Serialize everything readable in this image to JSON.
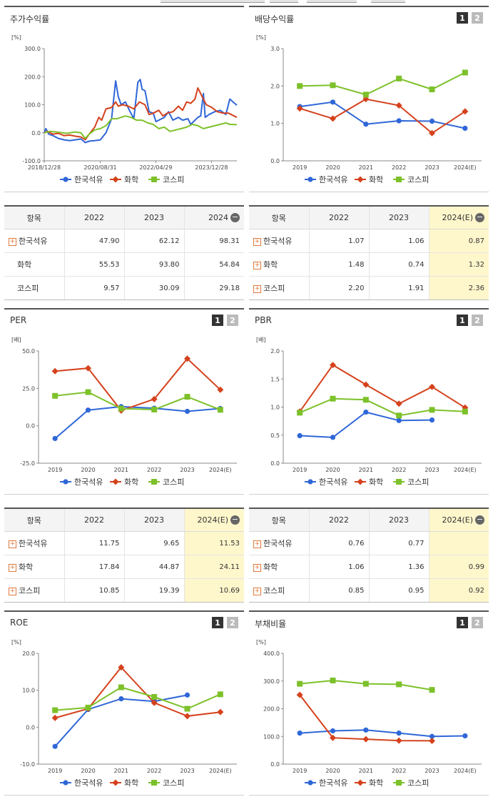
{
  "colors": {
    "series1": "#2f67d8",
    "series2": "#d5421d",
    "series3": "#7dc12a",
    "axis": "#888888",
    "highlight": "#fff7cc"
  },
  "button_labels": [
    "1",
    "2"
  ],
  "legend": [
    "한국석유",
    "화학",
    "코스피"
  ],
  "panels": [
    {
      "id": "p1",
      "title": "주가수익률",
      "unit": "[%]"
    },
    {
      "id": "p2",
      "title": "배당수익률",
      "unit": "[%]"
    },
    {
      "id": "p3",
      "title": "PER",
      "unit": "[배]"
    },
    {
      "id": "p4",
      "title": "PBR",
      "unit": "[배]"
    },
    {
      "id": "p5",
      "title": "ROE",
      "unit": "[%]"
    },
    {
      "id": "p6",
      "title": "부채비율",
      "unit": "[%]"
    }
  ],
  "tables": [
    {
      "header": [
        "항목",
        "2022",
        "2023",
        "2024"
      ],
      "rows": [
        {
          "name": "한국석유",
          "values": [
            "47.90",
            "62.12",
            "98.31"
          ]
        },
        {
          "name": "화학",
          "values": [
            "55.53",
            "93.80",
            "54.84"
          ]
        },
        {
          "name": "코스피",
          "values": [
            "9.57",
            "30.09",
            "29.18"
          ]
        }
      ]
    },
    {
      "header": [
        "항목",
        "2022",
        "2023",
        "2024(E)"
      ],
      "rows": [
        {
          "name": "한국석유",
          "values": [
            "1.07",
            "1.06",
            "0.87"
          ]
        },
        {
          "name": "화학",
          "values": [
            "1.48",
            "0.74",
            "1.32"
          ]
        },
        {
          "name": "코스피",
          "values": [
            "2.20",
            "1.91",
            "2.36"
          ]
        }
      ]
    },
    {
      "header": [
        "항목",
        "2022",
        "2023",
        "2024(E)"
      ],
      "rows": [
        {
          "name": "한국석유",
          "values": [
            "11.75",
            "9.65",
            "11.53"
          ]
        },
        {
          "name": "화학",
          "values": [
            "17.84",
            "44.87",
            "24.11"
          ]
        },
        {
          "name": "코스피",
          "values": [
            "10.85",
            "19.39",
            "10.69"
          ]
        }
      ]
    },
    {
      "header": [
        "항목",
        "2022",
        "2023",
        "2024(E)"
      ],
      "rows": [
        {
          "name": "한국석유",
          "values": [
            "0.76",
            "0.77",
            ""
          ]
        },
        {
          "name": "화학",
          "values": [
            "1.06",
            "1.36",
            "0.99"
          ]
        },
        {
          "name": "코스피",
          "values": [
            "0.85",
            "0.95",
            "0.92"
          ]
        }
      ]
    }
  ],
  "chart_data": [
    {
      "type": "line",
      "title": "주가수익률",
      "x_tick_labels": [
        "2018/12/28",
        "2020/08/31",
        "2022/04/29",
        "2023/12/28"
      ],
      "y_tick_labels": [
        "-100.0",
        "0.0",
        "100.0",
        "200.0",
        "300.0"
      ],
      "ylim": [
        -100,
        300
      ],
      "x_range": [
        "2018-12-28",
        "2024-09-30"
      ],
      "series": [
        {
          "name": "한국석유",
          "points": [
            [
              "2018-12-28",
              0
            ],
            [
              "2019-01-15",
              15
            ],
            [
              "2019-02-15",
              -5
            ],
            [
              "2019-04-01",
              -10
            ],
            [
              "2019-06-01",
              -20
            ],
            [
              "2019-08-01",
              -25
            ],
            [
              "2019-10-01",
              -28
            ],
            [
              "2019-12-01",
              -25
            ],
            [
              "2020-02-01",
              -22
            ],
            [
              "2020-03-20",
              -35
            ],
            [
              "2020-05-01",
              -30
            ],
            [
              "2020-07-01",
              -28
            ],
            [
              "2020-09-01",
              -25
            ],
            [
              "2020-11-01",
              0
            ],
            [
              "2021-01-01",
              50
            ],
            [
              "2021-02-15",
              185
            ],
            [
              "2021-03-15",
              130
            ],
            [
              "2021-04-15",
              100
            ],
            [
              "2021-06-01",
              110
            ],
            [
              "2021-07-15",
              80
            ],
            [
              "2021-09-01",
              50
            ],
            [
              "2021-10-15",
              180
            ],
            [
              "2021-11-10",
              190
            ],
            [
              "2021-12-01",
              155
            ],
            [
              "2022-01-01",
              150
            ],
            [
              "2022-02-15",
              75
            ],
            [
              "2022-04-01",
              70
            ],
            [
              "2022-05-01",
              40
            ],
            [
              "2022-06-01",
              45
            ],
            [
              "2022-08-01",
              55
            ],
            [
              "2022-09-15",
              75
            ],
            [
              "2022-11-01",
              45
            ],
            [
              "2023-01-01",
              55
            ],
            [
              "2023-02-15",
              45
            ],
            [
              "2023-04-15",
              50
            ],
            [
              "2023-05-15",
              30
            ],
            [
              "2023-06-15",
              40
            ],
            [
              "2023-08-01",
              55
            ],
            [
              "2023-09-01",
              60
            ],
            [
              "2023-10-01",
              140
            ],
            [
              "2023-10-20",
              55
            ],
            [
              "2023-12-01",
              65
            ],
            [
              "2024-02-01",
              75
            ],
            [
              "2024-04-01",
              80
            ],
            [
              "2024-06-01",
              65
            ],
            [
              "2024-07-15",
              120
            ],
            [
              "2024-09-30",
              98
            ]
          ]
        },
        {
          "name": "화학",
          "points": [
            [
              "2018-12-28",
              0
            ],
            [
              "2019-02-01",
              5
            ],
            [
              "2019-04-01",
              -5
            ],
            [
              "2019-06-01",
              -2
            ],
            [
              "2019-08-01",
              -10
            ],
            [
              "2019-10-01",
              -8
            ],
            [
              "2019-12-01",
              -12
            ],
            [
              "2020-02-01",
              -15
            ],
            [
              "2020-03-20",
              -25
            ],
            [
              "2020-05-01",
              -5
            ],
            [
              "2020-07-01",
              20
            ],
            [
              "2020-08-15",
              55
            ],
            [
              "2020-09-15",
              45
            ],
            [
              "2020-11-01",
              85
            ],
            [
              "2021-01-01",
              90
            ],
            [
              "2021-02-15",
              110
            ],
            [
              "2021-03-15",
              95
            ],
            [
              "2021-05-01",
              100
            ],
            [
              "2021-07-01",
              95
            ],
            [
              "2021-09-01",
              85
            ],
            [
              "2021-11-01",
              110
            ],
            [
              "2022-01-01",
              100
            ],
            [
              "2022-02-15",
              65
            ],
            [
              "2022-04-01",
              70
            ],
            [
              "2022-06-01",
              80
            ],
            [
              "2022-07-15",
              60
            ],
            [
              "2022-09-01",
              70
            ],
            [
              "2022-11-01",
              75
            ],
            [
              "2023-01-01",
              95
            ],
            [
              "2023-02-15",
              80
            ],
            [
              "2023-04-01",
              110
            ],
            [
              "2023-05-15",
              105
            ],
            [
              "2023-07-01",
              120
            ],
            [
              "2023-08-01",
              160
            ],
            [
              "2023-09-15",
              130
            ],
            [
              "2023-11-01",
              100
            ],
            [
              "2024-01-01",
              90
            ],
            [
              "2024-03-01",
              75
            ],
            [
              "2024-05-01",
              70
            ],
            [
              "2024-07-01",
              70
            ],
            [
              "2024-09-30",
              55
            ]
          ]
        },
        {
          "name": "코스피",
          "points": [
            [
              "2018-12-28",
              0
            ],
            [
              "2019-03-01",
              5
            ],
            [
              "2019-06-01",
              2
            ],
            [
              "2019-09-01",
              -2
            ],
            [
              "2019-12-01",
              3
            ],
            [
              "2020-02-01",
              0
            ],
            [
              "2020-03-20",
              -20
            ],
            [
              "2020-05-01",
              -5
            ],
            [
              "2020-07-01",
              10
            ],
            [
              "2020-09-01",
              15
            ],
            [
              "2020-11-01",
              25
            ],
            [
              "2021-01-01",
              50
            ],
            [
              "2021-03-01",
              50
            ],
            [
              "2021-06-01",
              60
            ],
            [
              "2021-08-01",
              55
            ],
            [
              "2021-10-01",
              45
            ],
            [
              "2021-12-01",
              45
            ],
            [
              "2022-02-01",
              35
            ],
            [
              "2022-04-01",
              30
            ],
            [
              "2022-06-01",
              15
            ],
            [
              "2022-08-01",
              20
            ],
            [
              "2022-10-01",
              5
            ],
            [
              "2022-12-01",
              10
            ],
            [
              "2023-02-01",
              15
            ],
            [
              "2023-04-01",
              20
            ],
            [
              "2023-06-01",
              30
            ],
            [
              "2023-08-01",
              25
            ],
            [
              "2023-10-01",
              15
            ],
            [
              "2023-12-01",
              20
            ],
            [
              "2024-02-01",
              25
            ],
            [
              "2024-04-01",
              30
            ],
            [
              "2024-06-01",
              35
            ],
            [
              "2024-07-15",
              30
            ],
            [
              "2024-09-30",
              29
            ]
          ]
        }
      ]
    },
    {
      "type": "line",
      "title": "배당수익률",
      "categories": [
        "2019",
        "2020",
        "2021",
        "2022",
        "2023",
        "2024(E)"
      ],
      "y_tick_labels": [
        "0.0",
        "1.0",
        "2.0",
        "3.0"
      ],
      "ylim": [
        0,
        3
      ],
      "series": [
        {
          "name": "한국석유",
          "values": [
            1.45,
            1.57,
            0.98,
            1.07,
            1.06,
            0.87
          ]
        },
        {
          "name": "화학",
          "values": [
            1.4,
            1.13,
            1.65,
            1.48,
            0.74,
            1.32
          ]
        },
        {
          "name": "코스피",
          "values": [
            2.0,
            2.02,
            1.77,
            2.2,
            1.91,
            2.36
          ]
        }
      ]
    },
    {
      "type": "line",
      "title": "PER",
      "categories": [
        "2019",
        "2020",
        "2021",
        "2022",
        "2023",
        "2024(E)"
      ],
      "y_tick_labels": [
        "-25.0",
        "0.0",
        "25.0",
        "50.0"
      ],
      "ylim": [
        -25,
        50
      ],
      "series": [
        {
          "name": "한국석유",
          "values": [
            -8.5,
            10.5,
            12.8,
            11.75,
            9.65,
            11.53
          ]
        },
        {
          "name": "화학",
          "values": [
            36.5,
            38.5,
            10.2,
            17.84,
            44.87,
            24.11
          ]
        },
        {
          "name": "코스피",
          "values": [
            20.0,
            22.5,
            11.5,
            10.85,
            19.39,
            10.69
          ]
        }
      ]
    },
    {
      "type": "line",
      "title": "PBR",
      "categories": [
        "2019",
        "2020",
        "2021",
        "2022",
        "2023",
        "2024(E)"
      ],
      "y_tick_labels": [
        "0.0",
        "0.5",
        "1.0",
        "1.5",
        "2.0"
      ],
      "ylim": [
        0,
        2
      ],
      "series": [
        {
          "name": "한국석유",
          "values": [
            0.49,
            0.46,
            0.91,
            0.76,
            0.77,
            null
          ]
        },
        {
          "name": "화학",
          "values": [
            0.92,
            1.75,
            1.4,
            1.06,
            1.36,
            0.99
          ]
        },
        {
          "name": "코스피",
          "values": [
            0.9,
            1.15,
            1.13,
            0.85,
            0.95,
            0.92
          ]
        }
      ]
    },
    {
      "type": "line",
      "title": "ROE",
      "categories": [
        "2019",
        "2020",
        "2021",
        "2022",
        "2023",
        "2024(E)"
      ],
      "y_tick_labels": [
        "-10.0",
        "0.0",
        "10.0",
        "20.0"
      ],
      "ylim": [
        -10,
        20
      ],
      "series": [
        {
          "name": "한국석유",
          "values": [
            -5.2,
            4.8,
            7.7,
            7.0,
            8.7,
            null
          ]
        },
        {
          "name": "화학",
          "values": [
            2.5,
            5.0,
            16.2,
            6.6,
            3.0,
            4.1
          ]
        },
        {
          "name": "코스피",
          "values": [
            4.6,
            5.3,
            10.8,
            8.2,
            5.0,
            8.9
          ]
        }
      ]
    },
    {
      "type": "line",
      "title": "부채비율",
      "categories": [
        "2019",
        "2020",
        "2021",
        "2022",
        "2023",
        "2024(E)"
      ],
      "y_tick_labels": [
        "0.0",
        "100.0",
        "200.0",
        "300.0",
        "400.0"
      ],
      "ylim": [
        0,
        400
      ],
      "series": [
        {
          "name": "한국석유",
          "values": [
            112,
            120,
            123,
            112,
            100,
            102
          ]
        },
        {
          "name": "화학",
          "values": [
            250,
            95,
            90,
            85,
            84,
            null
          ]
        },
        {
          "name": "코스피",
          "values": [
            290,
            302,
            290,
            288,
            268,
            null
          ]
        }
      ]
    }
  ]
}
